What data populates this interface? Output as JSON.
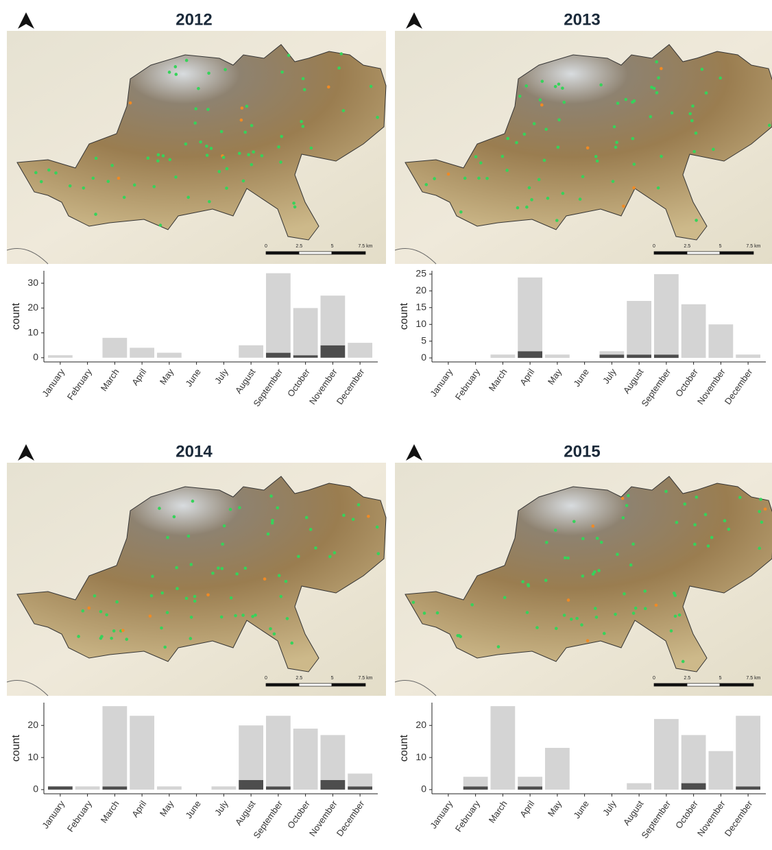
{
  "chart_data": [
    {
      "type": "bar",
      "stacked": true,
      "title": "2012",
      "y_label": "count",
      "categories": [
        "January",
        "February",
        "March",
        "April",
        "May",
        "June",
        "July",
        "August",
        "September",
        "October",
        "November",
        "December"
      ],
      "series": [
        {
          "color": "#4d4d4d",
          "values": [
            0,
            0,
            0,
            0,
            0,
            0,
            0,
            0,
            2,
            1,
            5,
            0
          ]
        },
        {
          "color": "#d4d4d4",
          "values": [
            1,
            0,
            8,
            4,
            2,
            0,
            0,
            5,
            32,
            19,
            20,
            6
          ]
        }
      ],
      "ylim": [
        -1.7,
        35
      ],
      "yticks": [
        0,
        10,
        20,
        30
      ],
      "map": {
        "scale_labels": [
          "0",
          "2.5",
          "5",
          "7.5 km"
        ]
      }
    },
    {
      "type": "bar",
      "stacked": true,
      "title": "2013",
      "y_label": "count",
      "categories": [
        "January",
        "February",
        "March",
        "April",
        "May",
        "June",
        "July",
        "August",
        "September",
        "October",
        "November",
        "December"
      ],
      "series": [
        {
          "color": "#4d4d4d",
          "values": [
            0,
            0,
            0,
            2,
            0,
            0,
            1,
            1,
            1,
            0,
            0,
            0
          ]
        },
        {
          "color": "#d4d4d4",
          "values": [
            0,
            0,
            1,
            22,
            1,
            0,
            1,
            16,
            24,
            16,
            10,
            1
          ]
        }
      ],
      "ylim": [
        -1.2,
        26
      ],
      "yticks": [
        0,
        5,
        10,
        15,
        20,
        25
      ],
      "map": {
        "scale_labels": [
          "0",
          "2.5",
          "5",
          "7.5 km"
        ]
      }
    },
    {
      "type": "bar",
      "stacked": true,
      "title": "2014",
      "y_label": "count",
      "categories": [
        "January",
        "February",
        "March",
        "April",
        "May",
        "June",
        "July",
        "August",
        "September",
        "October",
        "November",
        "December"
      ],
      "series": [
        {
          "color": "#4d4d4d",
          "values": [
            1,
            0,
            1,
            0,
            0,
            0,
            0,
            3,
            1,
            0,
            3,
            1
          ]
        },
        {
          "color": "#d4d4d4",
          "values": [
            0,
            1,
            25,
            23,
            1,
            0,
            1,
            17,
            22,
            19,
            14,
            4
          ]
        }
      ],
      "ylim": [
        -1.3,
        27.1
      ],
      "yticks": [
        0,
        10,
        20
      ],
      "map": {
        "scale_labels": [
          "0",
          "2.5",
          "5",
          "7.5 km"
        ]
      }
    },
    {
      "type": "bar",
      "stacked": true,
      "title": "2015",
      "y_label": "count",
      "categories": [
        "January",
        "February",
        "March",
        "April",
        "May",
        "June",
        "July",
        "August",
        "September",
        "October",
        "November",
        "December"
      ],
      "series": [
        {
          "color": "#4d4d4d",
          "values": [
            0,
            1,
            0,
            1,
            0,
            0,
            0,
            0,
            0,
            2,
            0,
            1
          ]
        },
        {
          "color": "#d4d4d4",
          "values": [
            0,
            3,
            26,
            3,
            13,
            0,
            0,
            2,
            22,
            15,
            12,
            22
          ]
        }
      ],
      "ylim": [
        -1.3,
        27.1
      ],
      "yticks": [
        0,
        10,
        20
      ],
      "map": {
        "scale_labels": [
          "0",
          "2.5",
          "5",
          "7.5 km"
        ]
      }
    }
  ]
}
